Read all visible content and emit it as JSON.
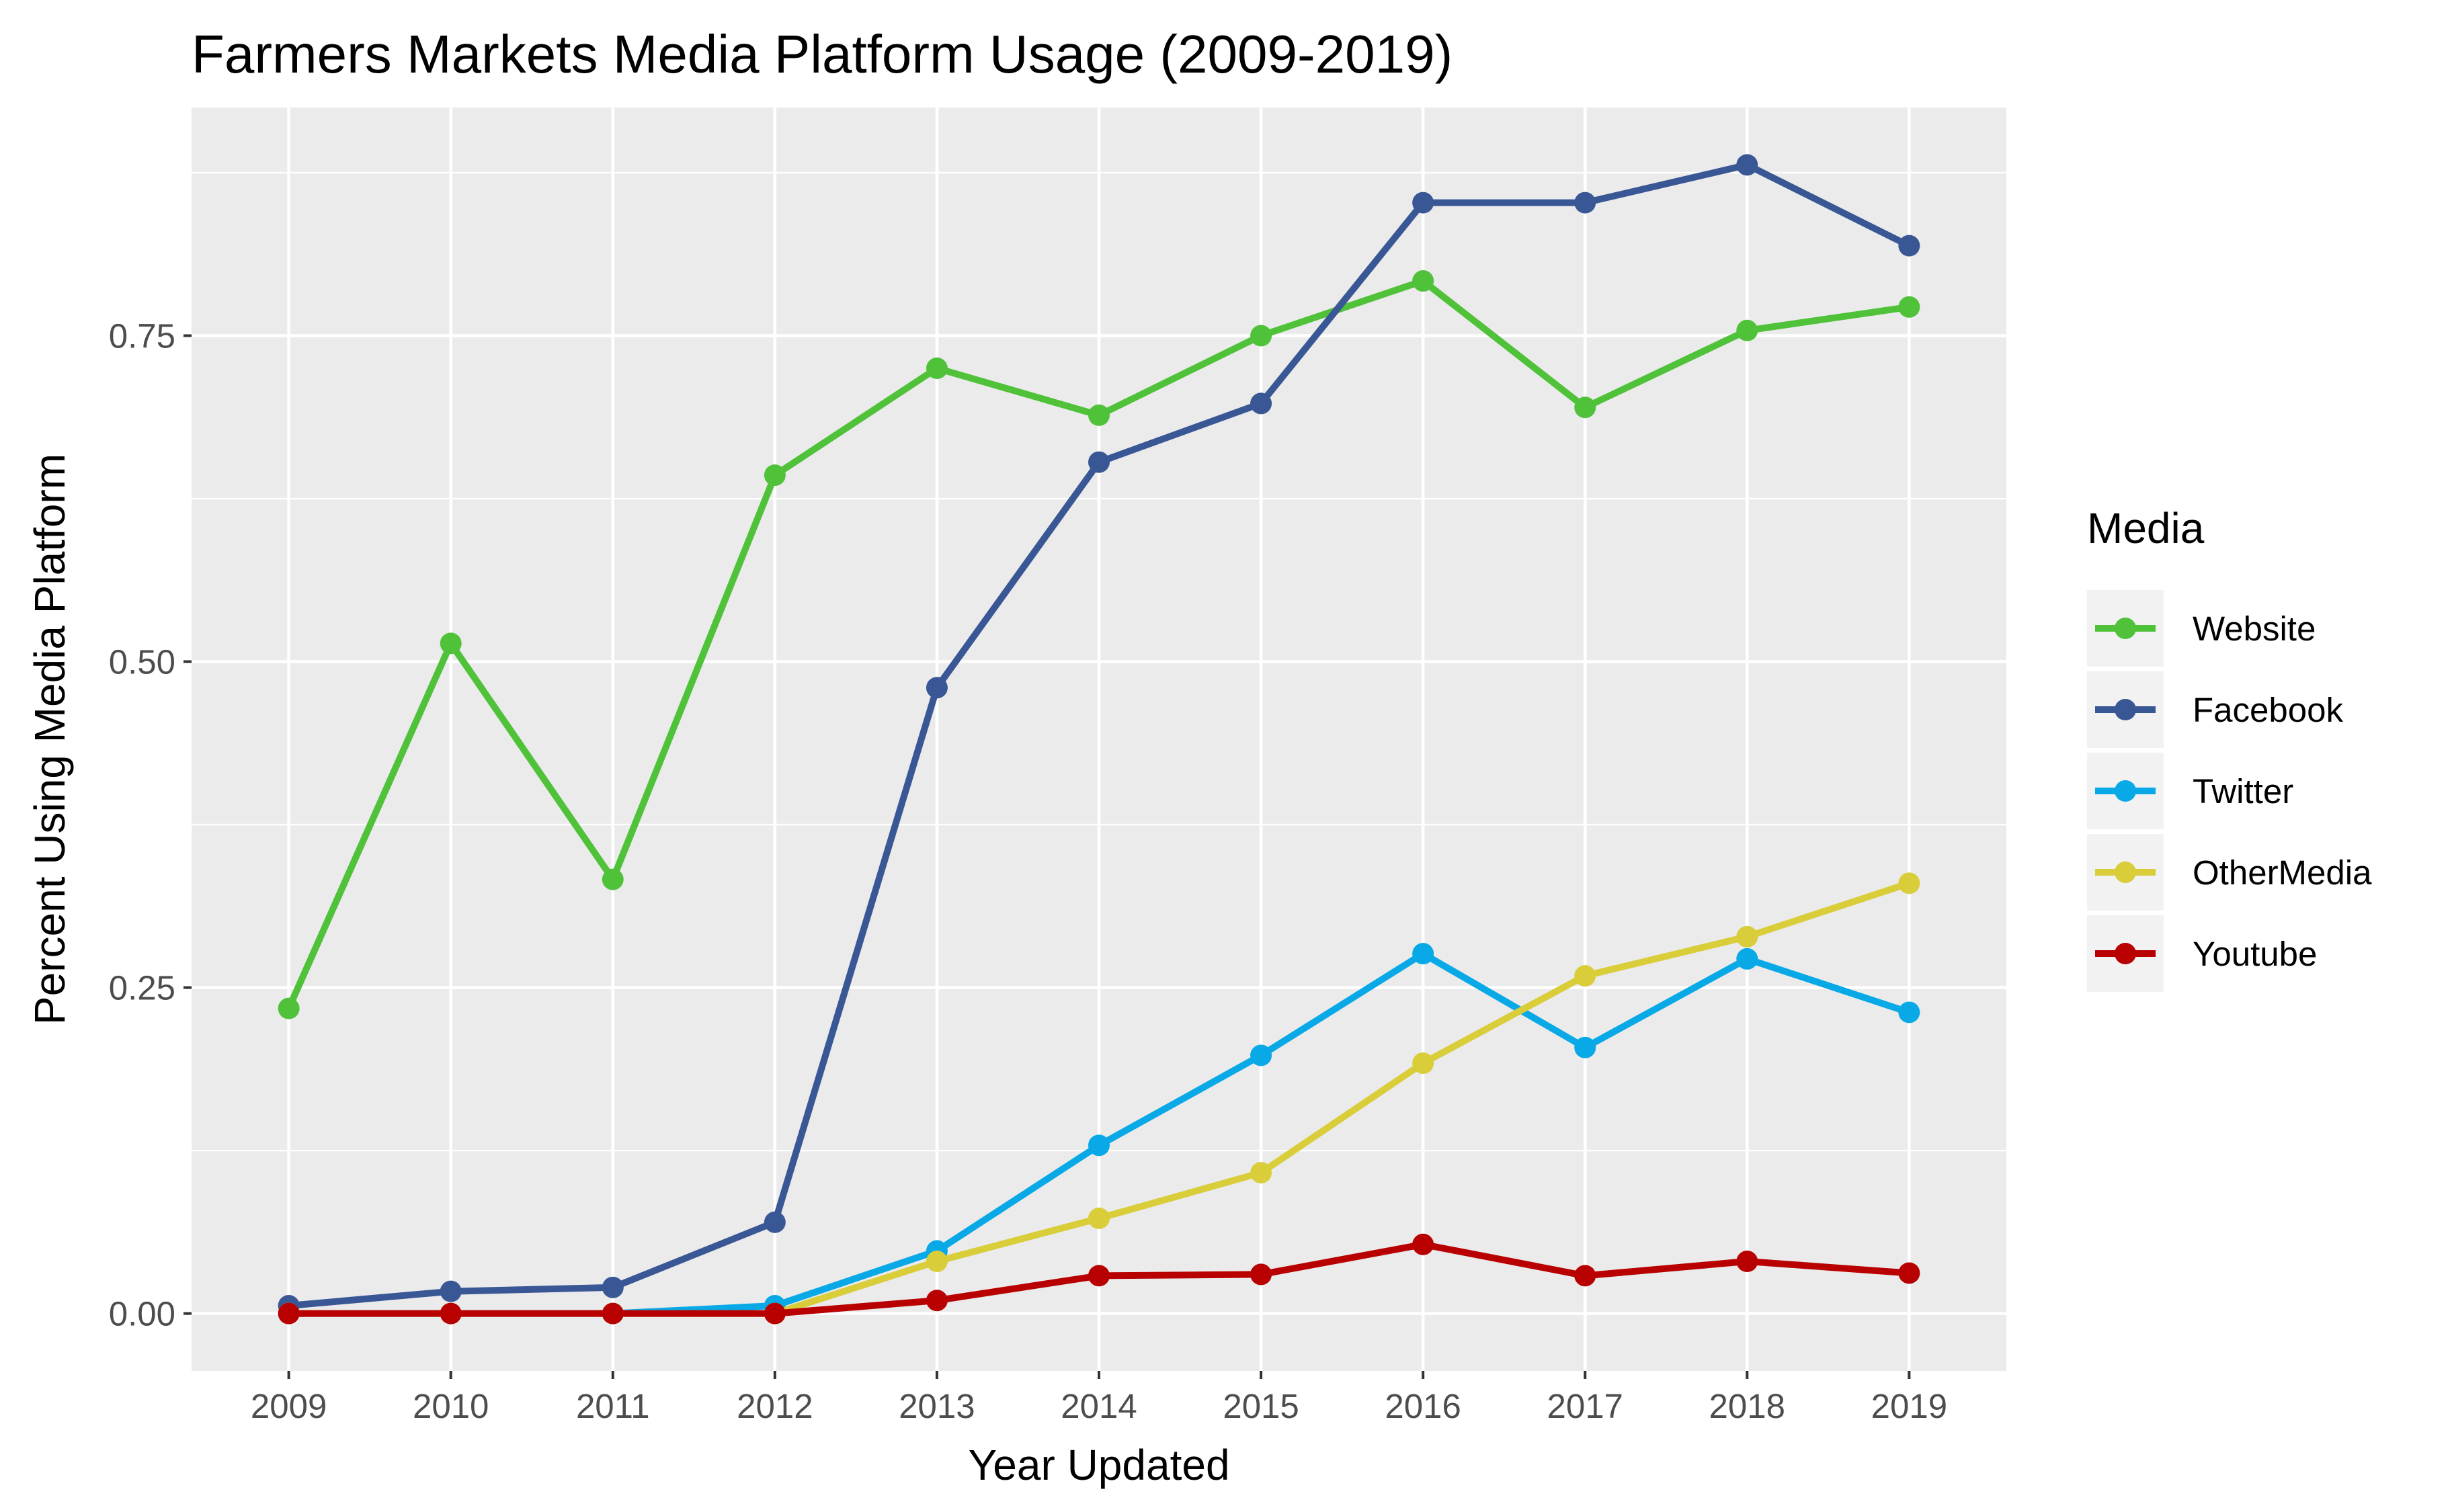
{
  "chart_data": {
    "type": "line",
    "title": "Farmers Markets Media Platform Usage (2009-2019)",
    "xlabel": "Year Updated",
    "ylabel": "Percent Using Media Platform",
    "x": [
      2009,
      2010,
      2011,
      2012,
      2013,
      2014,
      2015,
      2016,
      2017,
      2018,
      2019
    ],
    "x_tick_labels": [
      "2009",
      "2010",
      "2011",
      "2012",
      "2013",
      "2014",
      "2015",
      "2016",
      "2017",
      "2018",
      "2019"
    ],
    "y_ticks": [
      0,
      0.25,
      0.5,
      0.75
    ],
    "y_tick_labels": [
      "0.00",
      "0.25",
      "0.50",
      "0.75"
    ],
    "ylim": [
      -0.044,
      0.925
    ],
    "xlim": [
      2008.4,
      2019.6
    ],
    "grid": true,
    "legend": {
      "title": "Media",
      "position": "right"
    },
    "series": [
      {
        "name": "Website",
        "color": "#4fc23a",
        "values": [
          0.234,
          0.514,
          0.333,
          0.643,
          0.725,
          0.689,
          0.75,
          0.792,
          0.695,
          0.754,
          0.772
        ]
      },
      {
        "name": "Facebook",
        "color": "#3a5795",
        "values": [
          0.006,
          0.017,
          0.02,
          0.07,
          0.48,
          0.653,
          0.698,
          0.852,
          0.852,
          0.881,
          0.819
        ]
      },
      {
        "name": "Twitter",
        "color": "#08a9e6",
        "values": [
          0,
          0,
          0,
          0.006,
          0.048,
          0.129,
          0.198,
          0.276,
          0.204,
          0.272,
          0.231
        ]
      },
      {
        "name": "OtherMedia",
        "color": "#d9cd3a",
        "values": [
          0,
          0,
          0,
          0,
          0.04,
          0.073,
          0.108,
          0.192,
          0.259,
          0.289,
          0.33
        ]
      },
      {
        "name": "Youtube",
        "color": "#b90000",
        "values": [
          0,
          0,
          0,
          0,
          0.01,
          0.029,
          0.03,
          0.053,
          0.029,
          0.04,
          0.031
        ]
      }
    ]
  }
}
